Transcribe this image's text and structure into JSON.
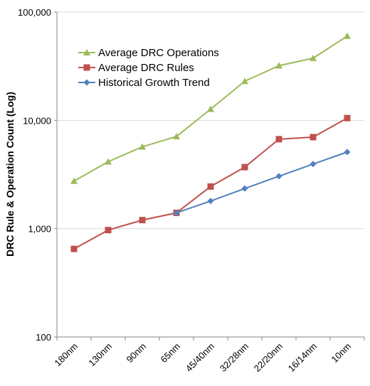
{
  "chart_data": {
    "type": "line",
    "title": "",
    "xlabel": "",
    "ylabel": "DRC Rule  & Operation Count (Log)",
    "yscale": "log",
    "ylim": [
      100,
      100000
    ],
    "yticks": [
      100,
      1000,
      10000,
      100000
    ],
    "ytick_labels": [
      "100",
      "1,000",
      "10,000",
      "100,000"
    ],
    "grid": "horizontal",
    "legend_position": "top-left",
    "categories": [
      "180nm",
      "130nm",
      "90nm",
      "65nm",
      "45/40nm",
      "32/28nm",
      "22/20nm",
      "16/14nm",
      "10nm"
    ],
    "series": [
      {
        "name": "Average DRC Operations",
        "color": "#9BBB59",
        "marker": "triangle",
        "values": [
          2750,
          4150,
          5700,
          7100,
          12700,
          23000,
          32000,
          37500,
          60000
        ]
      },
      {
        "name": "Average DRC Rules",
        "color": "#C0504D",
        "marker": "square",
        "values": [
          650,
          970,
          1200,
          1400,
          2450,
          3700,
          6700,
          7000,
          10500
        ]
      },
      {
        "name": "Historical Growth Trend",
        "color": "#4F81BD",
        "marker": "diamond",
        "values": [
          null,
          null,
          null,
          1400,
          1800,
          2350,
          3050,
          3950,
          5100
        ]
      }
    ]
  }
}
